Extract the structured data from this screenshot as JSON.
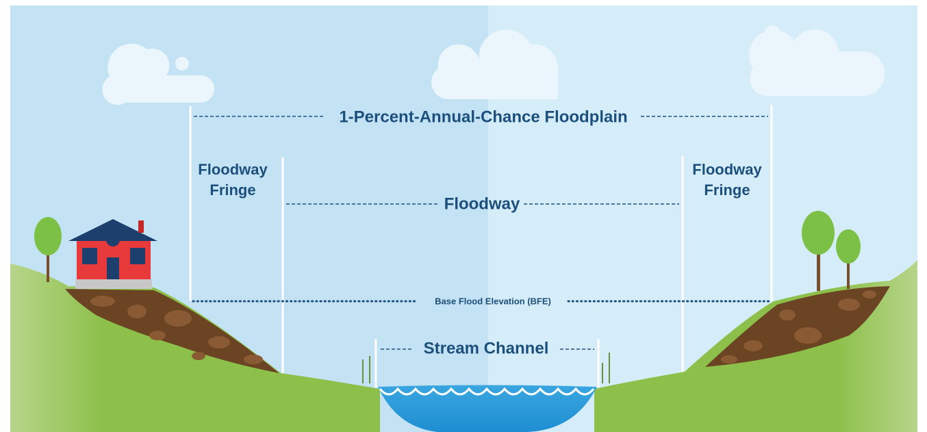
{
  "labels": {
    "floodplain": "1-Percent-Annual-Chance Floodplain",
    "left_fringe": [
      "Floodway",
      "Fringe"
    ],
    "right_fringe": [
      "Floodway",
      "Fringe"
    ],
    "floodway": "Floodway",
    "bfe": "Base Flood Elevation (BFE)",
    "stream_channel": "Stream Channel"
  }
}
